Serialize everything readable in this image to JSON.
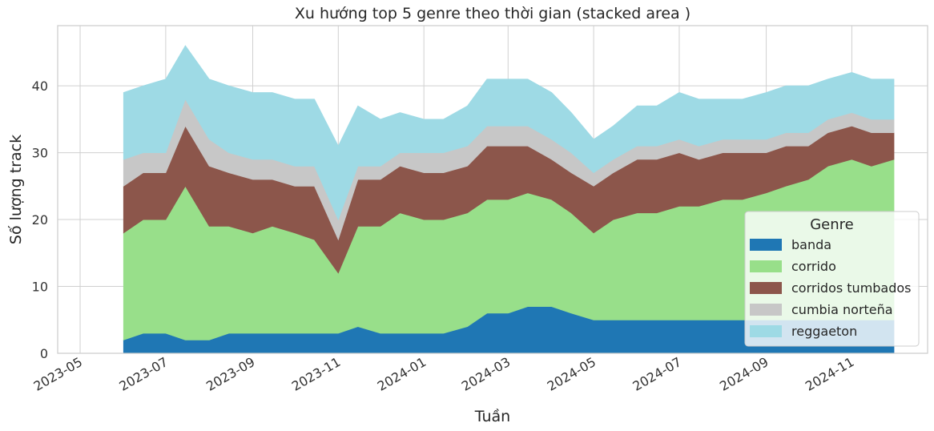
{
  "chart_data": {
    "type": "area",
    "stacked": true,
    "title": "Xu hướng top 5 genre theo thời gian (stacked area )",
    "xlabel": "Tuần",
    "ylabel": "Số lượng track",
    "xlim": [
      "2023-04-15",
      "2024-12-25"
    ],
    "ylim": [
      0,
      49
    ],
    "x_ticks": [
      {
        "date": "2023-05-01",
        "label": "2023-05"
      },
      {
        "date": "2023-07-01",
        "label": "2023-07"
      },
      {
        "date": "2023-09-01",
        "label": "2023-09"
      },
      {
        "date": "2023-11-01",
        "label": "2023-11"
      },
      {
        "date": "2024-01-01",
        "label": "2024-01"
      },
      {
        "date": "2024-03-01",
        "label": "2024-03"
      },
      {
        "date": "2024-05-01",
        "label": "2024-05"
      },
      {
        "date": "2024-07-01",
        "label": "2024-07"
      },
      {
        "date": "2024-09-01",
        "label": "2024-09"
      },
      {
        "date": "2024-11-01",
        "label": "2024-11"
      }
    ],
    "y_ticks": [
      0,
      10,
      20,
      30,
      40
    ],
    "grid": true,
    "legend": {
      "title": "Genre",
      "position": "lower-right"
    },
    "x": [
      "2023-06-01",
      "2023-06-15",
      "2023-07-01",
      "2023-07-15",
      "2023-08-01",
      "2023-08-15",
      "2023-09-01",
      "2023-09-15",
      "2023-10-01",
      "2023-10-15",
      "2023-11-01",
      "2023-11-15",
      "2023-12-01",
      "2023-12-15",
      "2024-01-01",
      "2024-01-15",
      "2024-02-01",
      "2024-02-15",
      "2024-03-01",
      "2024-03-15",
      "2024-04-01",
      "2024-04-15",
      "2024-05-01",
      "2024-05-15",
      "2024-06-01",
      "2024-06-15",
      "2024-07-01",
      "2024-07-15",
      "2024-08-01",
      "2024-08-15",
      "2024-09-01",
      "2024-09-15",
      "2024-10-01",
      "2024-10-15",
      "2024-11-01",
      "2024-11-15",
      "2024-12-01"
    ],
    "series": [
      {
        "name": "banda",
        "color": "#1f77b4",
        "values": [
          2,
          3,
          3,
          2,
          2,
          3,
          3,
          3,
          3,
          3,
          3,
          4,
          3,
          3,
          3,
          3,
          4,
          6,
          6,
          7,
          7,
          6,
          5,
          5,
          5,
          5,
          5,
          5,
          5,
          5,
          5,
          5,
          5,
          5,
          5,
          5,
          5
        ]
      },
      {
        "name": "corrido",
        "color": "#98df8a",
        "values": [
          16,
          17,
          17,
          23,
          17,
          16,
          15,
          16,
          15,
          14,
          9,
          15,
          16,
          18,
          17,
          17,
          17,
          17,
          17,
          17,
          16,
          15,
          13,
          15,
          16,
          16,
          17,
          17,
          18,
          18,
          19,
          20,
          21,
          23,
          24,
          23,
          24
        ]
      },
      {
        "name": "corridos tumbados",
        "color": "#8c564b",
        "values": [
          7,
          7,
          7,
          9,
          9,
          8,
          8,
          7,
          7,
          8,
          5,
          7,
          7,
          7,
          7,
          7,
          7,
          8,
          8,
          7,
          6,
          6,
          7,
          7,
          8,
          8,
          8,
          7,
          7,
          7,
          6,
          6,
          5,
          5,
          5,
          5,
          4
        ]
      },
      {
        "name": "cumbia norteña",
        "color": "#c7c7c7",
        "values": [
          4,
          3,
          3,
          4,
          4,
          3,
          3,
          3,
          3,
          3,
          3,
          2,
          2,
          2,
          3,
          3,
          3,
          3,
          3,
          3,
          3,
          3,
          2,
          2,
          2,
          2,
          2,
          2,
          2,
          2,
          2,
          2,
          2,
          2,
          2,
          2,
          2
        ]
      },
      {
        "name": "reggaeton",
        "color": "#9edae5",
        "values": [
          10,
          10,
          11,
          8,
          9,
          10,
          10,
          10,
          10,
          10,
          11,
          9,
          7,
          6,
          5,
          5,
          6,
          7,
          7,
          7,
          7,
          6,
          5,
          5,
          6,
          6,
          7,
          7,
          6,
          6,
          7,
          7,
          7,
          6,
          6,
          6,
          6
        ]
      }
    ]
  }
}
